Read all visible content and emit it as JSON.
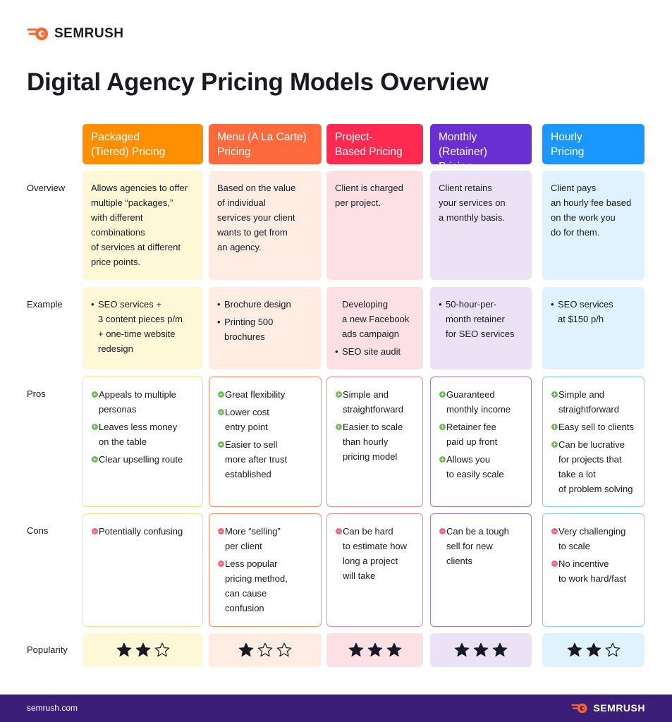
{
  "brand": {
    "name": "SEMRUSH",
    "logo_icon": "semrush-fireball-icon",
    "color": "#ff642d"
  },
  "title": "Digital Agency Pricing Models Overview",
  "row_labels": {
    "overview": "Overview",
    "example": "Example",
    "pros": "Pros",
    "cons": "Cons",
    "popularity": "Popularity"
  },
  "columns": [
    {
      "header": "Packaged\n(Tiered) Pricing",
      "header_color": "#ff8f00",
      "light_color": "#fff8d6",
      "outline_color": "#fbe28a",
      "overview": "Allows agencies to offer\nmultiple “packages,”\nwith different\ncombinations\nof services at different\nprice points.",
      "example": [
        "SEO services +\n3 content pieces p/m\n+ one-time website\nredesign"
      ],
      "example_bullets": true,
      "pros": [
        "Appeals to multiple\npersonas",
        "Leaves less money\non the table",
        "Clear upselling route"
      ],
      "cons": [
        "Potentially confusing"
      ],
      "popularity_stars": 2
    },
    {
      "header": "Menu (A La Carte)\nPricing",
      "header_color": "#ff6a3d",
      "light_color": "#ffece3",
      "outline_color": "#ff8f6b",
      "overview": "Based on the value\nof individual\nservices your client\nwants to get from\nan agency.",
      "example": [
        "Brochure design",
        "Printing 500\nbrochures"
      ],
      "example_bullets": true,
      "pros": [
        "Great flexibility",
        "Lower cost\nentry point",
        "Easier to sell\nmore after trust\nestablished"
      ],
      "cons": [
        "More “selling”\nper client",
        "Less popular\npricing method,\ncan cause\nconfusion"
      ],
      "popularity_stars": 1
    },
    {
      "header": "Project-\nBased Pricing",
      "header_color": "#ff2a50",
      "light_color": "#fde0e5",
      "outline_color": "#f78a9c",
      "overview": "Client is charged\nper project.",
      "example": [
        "Developing\na new Facebook\nads campaign",
        "SEO site audit"
      ],
      "example_bullets": "mixed",
      "pros": [
        "Simple and\nstraightforward",
        "Easier to scale\nthan hourly\npricing model"
      ],
      "cons": [
        "Can be hard\nto estimate how\nlong a project\nwill take"
      ],
      "popularity_stars": 3
    },
    {
      "header": "Monthly\n(Retainer) Pricing",
      "header_color": "#6a2fd0",
      "light_color": "#ebe3f5",
      "outline_color": "#9d78dd",
      "overview": "Client retains\nyour services on\na monthly basis.",
      "example": [
        "50-hour-per-\nmonth retainer\nfor SEO services"
      ],
      "example_bullets": true,
      "pros": [
        "Guaranteed\nmonthly income",
        "Retainer fee\npaid up front",
        "Allows you\nto easily scale"
      ],
      "cons": [
        "Can be a tough\nsell for new\nclients"
      ],
      "popularity_stars": 3
    },
    {
      "header": "Hourly\nPricing",
      "header_color": "#1a98ff",
      "light_color": "#e1f2ff",
      "outline_color": "#8cccff",
      "overview": "Client pays\nan hourly fee based\non the work you\ndo for them.",
      "example": [
        "SEO services\nat $150 p/h"
      ],
      "example_bullets": true,
      "pros": [
        "Simple and\nstraightforward",
        "Easy sell to clients",
        "Can be lucrative\nfor projects that\ntake a lot\nof problem solving"
      ],
      "cons": [
        "Very challenging\nto scale",
        "No incentive\nto work hard/fast"
      ],
      "popularity_stars": 2
    }
  ],
  "footer": {
    "url": "semrush.com",
    "background": "#3b1e78"
  }
}
